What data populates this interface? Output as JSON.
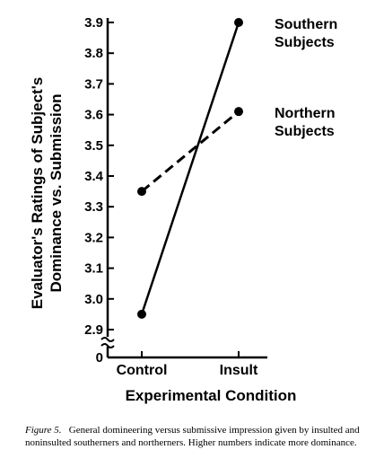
{
  "chart_data": {
    "type": "line",
    "categories": [
      "Control",
      "Insult"
    ],
    "series": [
      {
        "name": "Southern Subjects",
        "values": [
          2.95,
          3.9
        ],
        "line_style": "solid"
      },
      {
        "name": "Northern Subjects",
        "values": [
          3.35,
          3.61
        ],
        "line_style": "dashed"
      }
    ],
    "series_label_lines": [
      [
        "Southern",
        "Subjects"
      ],
      [
        "Northern",
        "Subjects"
      ]
    ],
    "xlabel": "Experimental Condition",
    "ylabel_lines": [
      "Evaluator's Ratings of Subject's",
      "Dominance vs. Submission"
    ],
    "yticks": [
      "0",
      "2.9",
      "3.0",
      "3.1",
      "3.2",
      "3.3",
      "3.4",
      "3.5",
      "3.6",
      "3.7",
      "3.8",
      "3.9"
    ],
    "ylim": [
      2.9,
      3.9
    ],
    "axis_break": true,
    "grid": false,
    "line_color": "#000000"
  },
  "caption": {
    "figure_label": "Figure 5.",
    "text": "General domineering versus submissive impression given by insulted and noninsulted southerners and northerners. Higher numbers indicate more dominance."
  }
}
